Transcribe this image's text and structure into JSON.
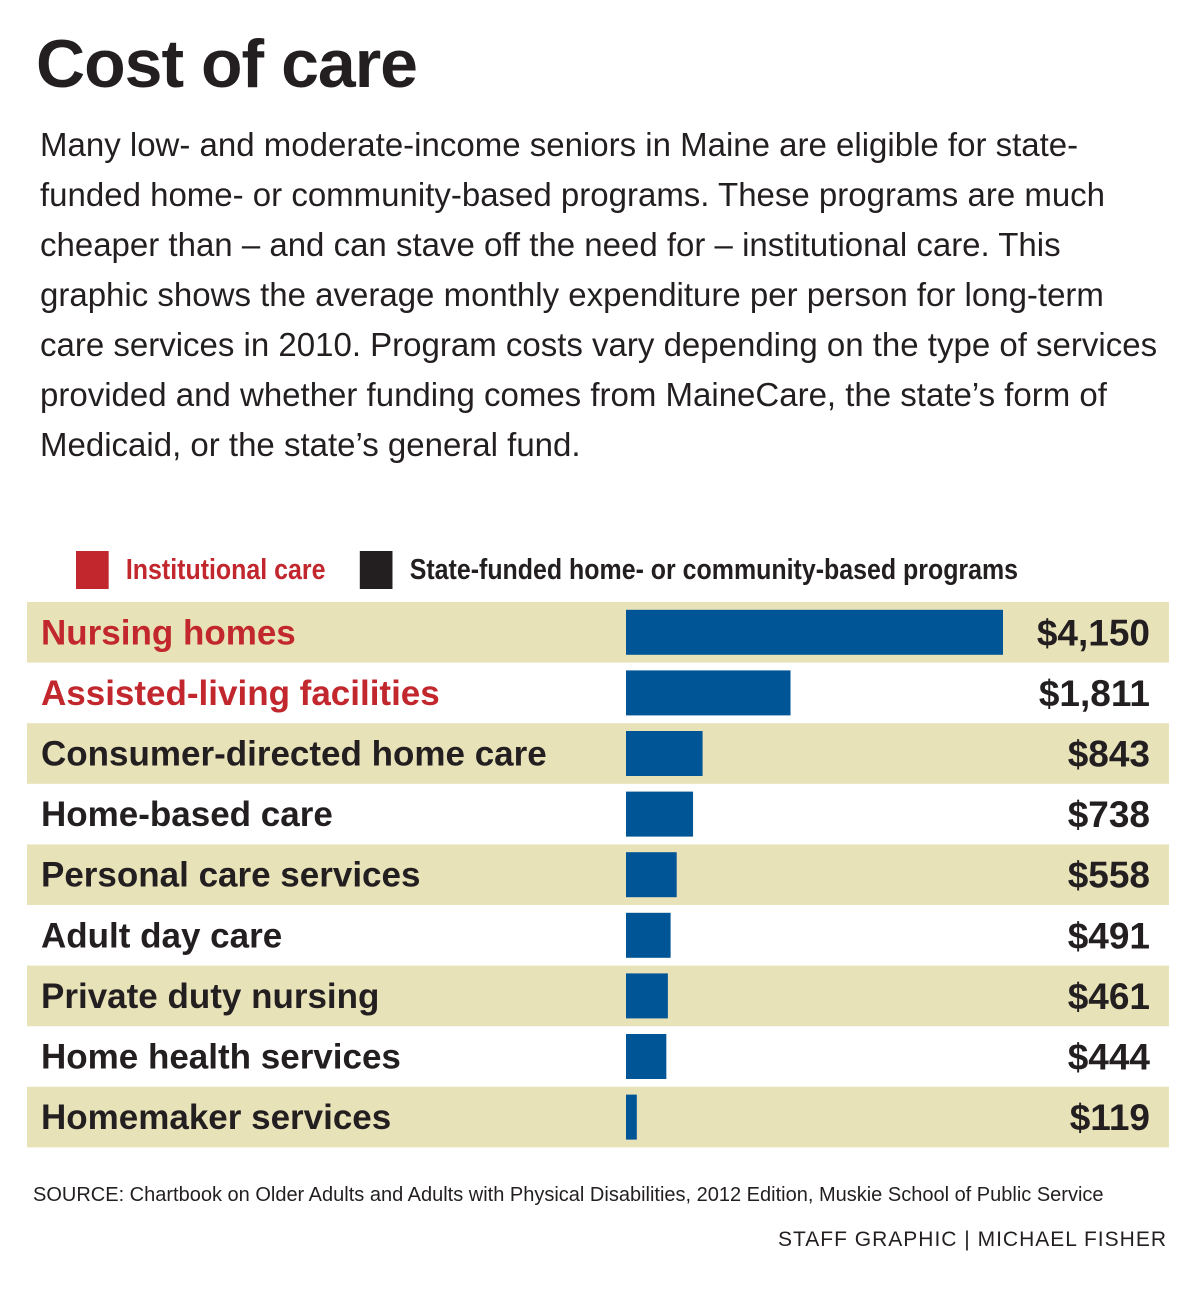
{
  "title": "Cost of care",
  "intro": "Many low- and moderate-income seniors in Maine are eligible for state-funded home- or community-based programs. These programs are much cheaper than – and can stave off the need for – institutional care. This graphic shows the average monthly expenditure per person for long-term care services in 2010. Program costs vary depending on the type of services provided and whether funding comes from MaineCare, the state’s form of Medicaid, or the state’s general fund.",
  "legend": [
    {
      "label": "Institutional care",
      "swatch_color": "#c1272d",
      "text_color": "#c1272d"
    },
    {
      "label": "State-funded home- or community-based programs",
      "swatch_color": "#231f20",
      "text_color": "#231f20"
    }
  ],
  "chart_data": {
    "type": "bar",
    "orientation": "horizontal",
    "categories": [
      "Nursing homes",
      "Assisted-living facilities",
      "Consumer-directed home care",
      "Home-based care",
      "Personal care services",
      "Adult day care",
      "Private duty nursing",
      "Home health services",
      "Homemaker services"
    ],
    "values": [
      4150,
      1811,
      843,
      738,
      558,
      491,
      461,
      444,
      119
    ],
    "value_labels": [
      "$4,150",
      "$1,811",
      "$843",
      "$738",
      "$558",
      "$491",
      "$461",
      "$444",
      "$119"
    ],
    "category_groups": [
      "Institutional care",
      "Institutional care",
      "State-funded home- or community-based programs",
      "State-funded home- or community-based programs",
      "State-funded home- or community-based programs",
      "State-funded home- or community-based programs",
      "State-funded home- or community-based programs",
      "State-funded home- or community-based programs",
      "State-funded home- or community-based programs"
    ],
    "bar_color": "#005596",
    "label_colors": {
      "Institutional care": "#c1272d",
      "State-funded home- or community-based programs": "#231f20"
    },
    "row_band_color": "#e8e2b8",
    "xlim": [
      0,
      4150
    ]
  },
  "source": "SOURCE: Chartbook on Older Adults and Adults with Physical Disabilities, 2012 Edition, Muskie School of Public Service",
  "credit": "STAFF GRAPHIC | MICHAEL FISHER"
}
